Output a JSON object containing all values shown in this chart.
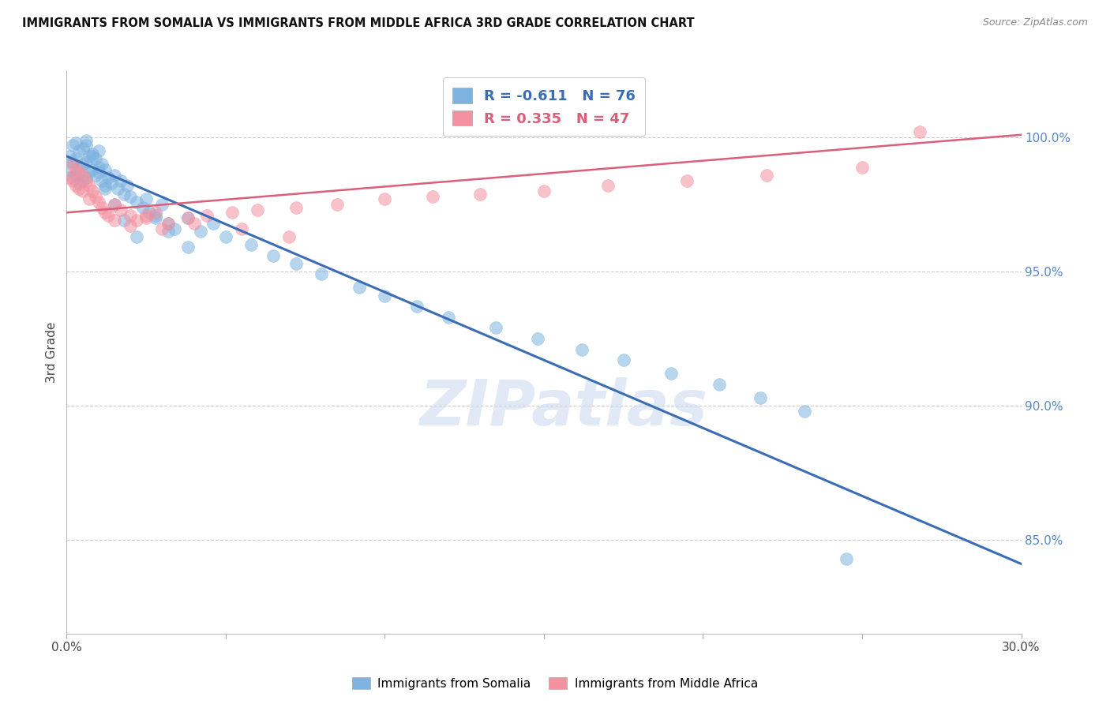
{
  "title": "IMMIGRANTS FROM SOMALIA VS IMMIGRANTS FROM MIDDLE AFRICA 3RD GRADE CORRELATION CHART",
  "source": "Source: ZipAtlas.com",
  "ylabel": "3rd Grade",
  "ytick_labels": [
    "100.0%",
    "95.0%",
    "90.0%",
    "85.0%"
  ],
  "ytick_values": [
    1.0,
    0.95,
    0.9,
    0.85
  ],
  "xmin": 0.0,
  "xmax": 0.3,
  "ymin": 0.815,
  "ymax": 1.025,
  "blue_color": "#7EB3E0",
  "pink_color": "#F4909F",
  "blue_line_color": "#3B6DB5",
  "pink_line_color": "#D95F7A",
  "watermark": "ZIPatlas",
  "somalia_scatter_x": [
    0.001,
    0.001,
    0.002,
    0.002,
    0.002,
    0.003,
    0.003,
    0.003,
    0.004,
    0.004,
    0.004,
    0.005,
    0.005,
    0.005,
    0.006,
    0.006,
    0.006,
    0.007,
    0.007,
    0.008,
    0.008,
    0.009,
    0.009,
    0.01,
    0.01,
    0.011,
    0.011,
    0.012,
    0.012,
    0.013,
    0.014,
    0.015,
    0.016,
    0.017,
    0.018,
    0.019,
    0.02,
    0.022,
    0.024,
    0.026,
    0.028,
    0.03,
    0.032,
    0.034,
    0.038,
    0.042,
    0.046,
    0.05,
    0.058,
    0.065,
    0.072,
    0.08,
    0.092,
    0.1,
    0.11,
    0.12,
    0.135,
    0.148,
    0.162,
    0.175,
    0.19,
    0.205,
    0.218,
    0.232,
    0.245,
    0.006,
    0.008,
    0.01,
    0.012,
    0.015,
    0.018,
    0.022,
    0.025,
    0.028,
    0.032,
    0.038
  ],
  "somalia_scatter_y": [
    0.993,
    0.988,
    0.997,
    0.991,
    0.985,
    0.998,
    0.992,
    0.986,
    0.995,
    0.989,
    0.983,
    0.996,
    0.99,
    0.984,
    0.997,
    0.991,
    0.985,
    0.993,
    0.987,
    0.994,
    0.988,
    0.992,
    0.986,
    0.995,
    0.989,
    0.99,
    0.984,
    0.988,
    0.982,
    0.985,
    0.983,
    0.986,
    0.981,
    0.984,
    0.979,
    0.982,
    0.978,
    0.976,
    0.974,
    0.972,
    0.97,
    0.975,
    0.968,
    0.966,
    0.97,
    0.965,
    0.968,
    0.963,
    0.96,
    0.956,
    0.953,
    0.949,
    0.944,
    0.941,
    0.937,
    0.933,
    0.929,
    0.925,
    0.921,
    0.917,
    0.912,
    0.908,
    0.903,
    0.898,
    0.843,
    0.999,
    0.993,
    0.987,
    0.981,
    0.975,
    0.969,
    0.963,
    0.977,
    0.971,
    0.965,
    0.959
  ],
  "middle_africa_scatter_x": [
    0.001,
    0.002,
    0.002,
    0.003,
    0.003,
    0.004,
    0.004,
    0.005,
    0.005,
    0.006,
    0.007,
    0.007,
    0.008,
    0.009,
    0.01,
    0.011,
    0.012,
    0.013,
    0.015,
    0.017,
    0.02,
    0.022,
    0.025,
    0.028,
    0.032,
    0.038,
    0.044,
    0.052,
    0.06,
    0.072,
    0.085,
    0.1,
    0.115,
    0.13,
    0.15,
    0.17,
    0.195,
    0.22,
    0.25,
    0.268,
    0.015,
    0.02,
    0.025,
    0.03,
    0.04,
    0.055,
    0.07
  ],
  "middle_africa_scatter_y": [
    0.985,
    0.99,
    0.984,
    0.988,
    0.982,
    0.987,
    0.981,
    0.986,
    0.98,
    0.984,
    0.982,
    0.977,
    0.98,
    0.978,
    0.976,
    0.974,
    0.972,
    0.971,
    0.975,
    0.973,
    0.971,
    0.969,
    0.97,
    0.972,
    0.968,
    0.97,
    0.971,
    0.972,
    0.973,
    0.974,
    0.975,
    0.977,
    0.978,
    0.979,
    0.98,
    0.982,
    0.984,
    0.986,
    0.989,
    1.002,
    0.969,
    0.967,
    0.971,
    0.966,
    0.968,
    0.966,
    0.963
  ],
  "blue_line_x0": 0.0,
  "blue_line_y0": 0.993,
  "blue_line_x1": 0.3,
  "blue_line_y1": 0.841,
  "pink_line_x0": 0.0,
  "pink_line_y0": 0.972,
  "pink_line_x1": 0.3,
  "pink_line_y1": 1.001
}
